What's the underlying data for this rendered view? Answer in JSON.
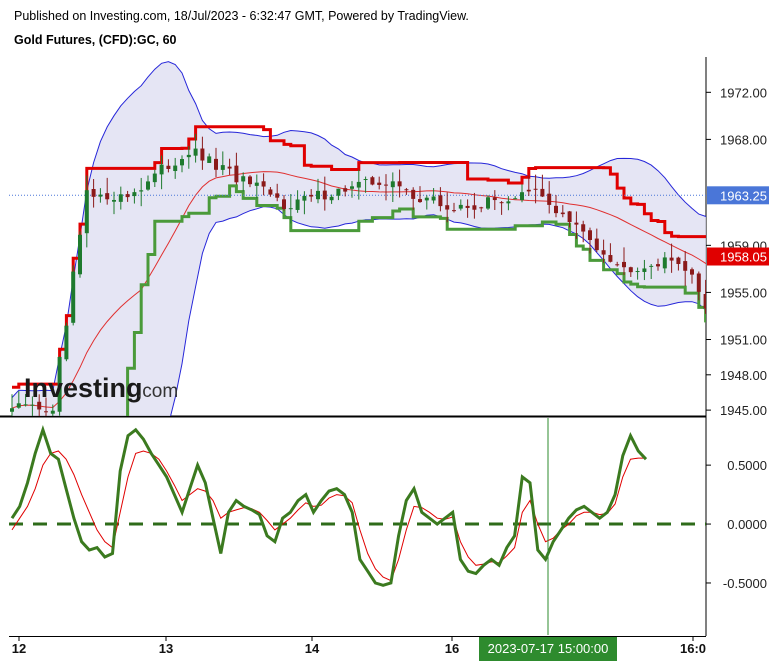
{
  "header": {
    "published": "Published on Investing.com, 18/Jul/2023 - 6:32:47 GMT, Powered by TradingView.",
    "symbol_title": "Gold Futures, (CFD):GC, 60"
  },
  "logo": {
    "text_main": "Investing",
    "text_suffix": ".com"
  },
  "colors": {
    "bull": "#1e7a2e",
    "bear": "#8b1a1a",
    "band_fill": "#dcdcf0",
    "band_line": "#2626d9",
    "sma": "#e03030",
    "upper_trend": "#e00000",
    "lower_trend": "#4a9a3a",
    "osc": "#3b7a1f",
    "osc_signal": "#e00000",
    "last_price_bg": "#4a76d8",
    "alert_bg": "#e00000",
    "cursor_bg": "#2e8b2e"
  },
  "chart_data": [
    {
      "type": "candlestick",
      "title": "Gold Futures, (CFD):GC, 60",
      "y_axis_ticks": [
        1945.0,
        1948.0,
        1951.0,
        1955.0,
        1959.0,
        1963.25,
        1968.0,
        1972.0
      ],
      "y_axis_tick_labels": [
        "1945.00",
        "1948.00",
        "1951.00",
        "1955.00",
        "1959.00",
        "1963.25",
        "1968.00",
        "1972.00"
      ],
      "ylim": [
        1944.5,
        1975.0
      ],
      "x_tick_labels": [
        "12",
        "13",
        "14",
        "16",
        "16:0"
      ],
      "x_crosshair_label": "2023-07-17 15:00:00",
      "last_price": {
        "label": "1963.25",
        "value": 1963.25
      },
      "alert_price": {
        "label": "1958.05",
        "value": 1958.05
      },
      "overlays": [
        "bollinger-bands",
        "moving-average",
        "trailing-stop-upper",
        "trailing-stop-lower"
      ],
      "grid": false,
      "segments": [
        {
          "bars": 3,
          "from": 1945.0,
          "to": 1945.5,
          "vol": 0.5
        },
        {
          "bars": 4,
          "from": 1945.5,
          "to": 1944.8,
          "vol": 0.5
        },
        {
          "bars": 5,
          "from": 1944.8,
          "to": 1963.0,
          "vol": 2.2
        },
        {
          "bars": 6,
          "from": 1963.0,
          "to": 1963.2,
          "vol": 0.6
        },
        {
          "bars": 9,
          "from": 1963.2,
          "to": 1967.0,
          "vol": 1.1
        },
        {
          "bars": 14,
          "from": 1967.0,
          "to": 1962.5,
          "vol": 1.1
        },
        {
          "bars": 14,
          "from": 1962.5,
          "to": 1964.5,
          "vol": 1.0
        },
        {
          "bars": 11,
          "from": 1964.5,
          "to": 1962.0,
          "vol": 1.3
        },
        {
          "bars": 12,
          "from": 1962.0,
          "to": 1963.5,
          "vol": 1.0
        },
        {
          "bars": 13,
          "from": 1963.5,
          "to": 1957.0,
          "vol": 0.9
        },
        {
          "bars": 8,
          "from": 1957.0,
          "to": 1957.8,
          "vol": 0.8
        },
        {
          "bars": 6,
          "from": 1957.8,
          "to": 1952.3,
          "vol": 1.5
        },
        {
          "bars": 7,
          "from": 1952.3,
          "to": 1958.8,
          "vol": 1.1
        },
        {
          "bars": 11,
          "from": 1958.8,
          "to": 1959.2,
          "vol": 0.6
        },
        {
          "bars": 8,
          "from": 1959.2,
          "to": 1963.25,
          "vol": 0.8
        }
      ]
    },
    {
      "type": "line",
      "title": "",
      "y_axis_ticks": [
        0.5,
        0.0,
        -0.5
      ],
      "y_axis_tick_labels": [
        "0.5000",
        "0.0000",
        "-0.5000"
      ],
      "ylim": [
        -0.95,
        0.9
      ],
      "zero_line": "dashed",
      "series": [
        {
          "values": [
            0.05,
            0.15,
            0.35,
            0.6,
            0.8,
            0.6,
            0.55,
            0.3,
            0.05,
            -0.15,
            -0.22,
            -0.2,
            -0.28,
            -0.25,
            0.45,
            0.75,
            0.8,
            0.72,
            0.6,
            0.5,
            0.4,
            0.25,
            0.1,
            0.3,
            0.5,
            0.35,
            0.05,
            -0.25,
            0.1,
            0.2,
            0.15,
            0.12,
            0.08,
            -0.1,
            -0.15,
            0.05,
            0.1,
            0.2,
            0.25,
            0.1,
            0.2,
            0.28,
            0.3,
            0.25,
            0.1,
            -0.3,
            -0.4,
            -0.5,
            -0.52,
            -0.5,
            -0.1,
            0.2,
            0.3,
            0.1,
            0.05,
            0.0,
            0.05,
            0.1,
            -0.3,
            -0.4,
            -0.42,
            -0.35,
            -0.3,
            -0.35,
            -0.2,
            -0.1,
            0.4,
            0.35,
            -0.22,
            -0.3,
            -0.15,
            -0.05,
            0.05,
            0.12,
            0.15,
            0.1,
            0.05,
            0.1,
            0.25,
            0.58,
            0.75,
            0.62,
            0.55
          ]
        },
        {
          "values": [
            -0.05,
            0.05,
            0.15,
            0.3,
            0.5,
            0.6,
            0.62,
            0.55,
            0.42,
            0.25,
            0.1,
            -0.05,
            -0.15,
            -0.2,
            0.1,
            0.4,
            0.6,
            0.62,
            0.6,
            0.55,
            0.45,
            0.33,
            0.2,
            0.25,
            0.3,
            0.28,
            0.2,
            0.05,
            0.1,
            0.12,
            0.14,
            0.13,
            0.1,
            0.03,
            -0.05,
            0.0,
            0.05,
            0.12,
            0.18,
            0.15,
            0.16,
            0.22,
            0.25,
            0.24,
            0.18,
            -0.05,
            -0.25,
            -0.38,
            -0.45,
            -0.48,
            -0.3,
            -0.05,
            0.15,
            0.14,
            0.1,
            0.05,
            0.04,
            0.06,
            -0.15,
            -0.28,
            -0.35,
            -0.34,
            -0.32,
            -0.33,
            -0.27,
            -0.2,
            0.1,
            0.2,
            0.0,
            -0.15,
            -0.12,
            -0.05,
            0.0,
            0.07,
            0.1,
            0.1,
            0.08,
            0.09,
            0.17,
            0.4,
            0.55,
            0.56,
            0.56
          ]
        }
      ]
    }
  ]
}
